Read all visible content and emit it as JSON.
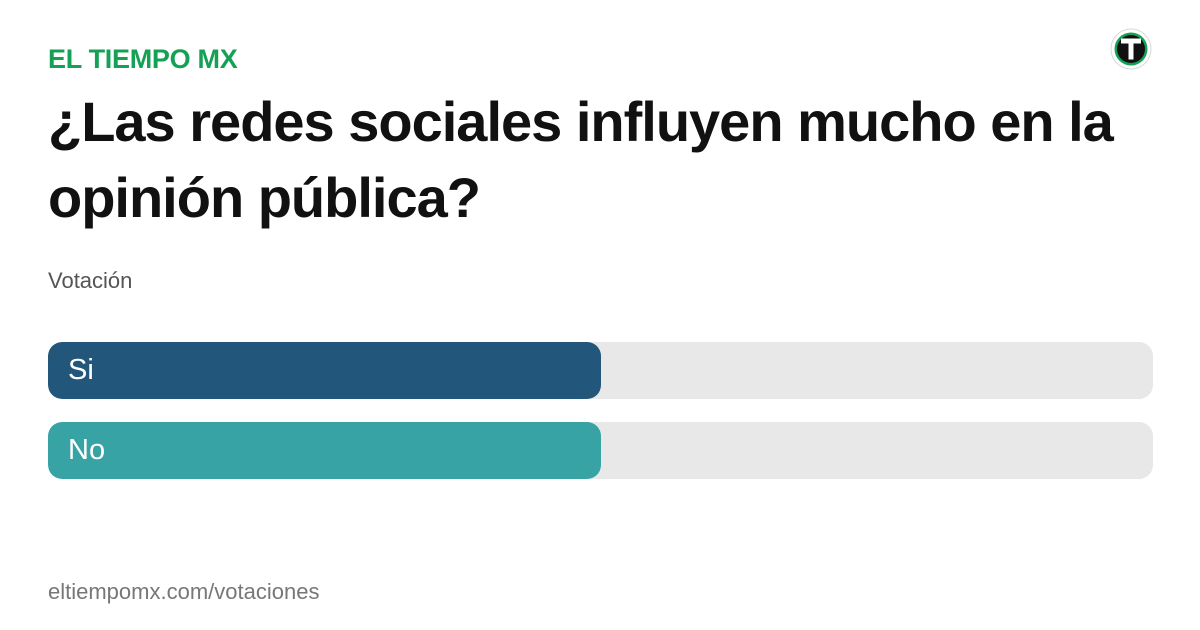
{
  "brand": {
    "name": "EL TIEMPO MX",
    "color": "#14a155",
    "logo_icon": "el-tiempo-t-logo"
  },
  "poll": {
    "question": "¿Las redes sociales influyen mucho en la opinión pública?",
    "subtitle": "Votación",
    "options": [
      {
        "label": "Si",
        "share": 0.5,
        "color": "#22567a"
      },
      {
        "label": "No",
        "share": 0.5,
        "color": "#37a3a4"
      }
    ]
  },
  "footer": {
    "url": "eltiempomx.com/votaciones"
  }
}
